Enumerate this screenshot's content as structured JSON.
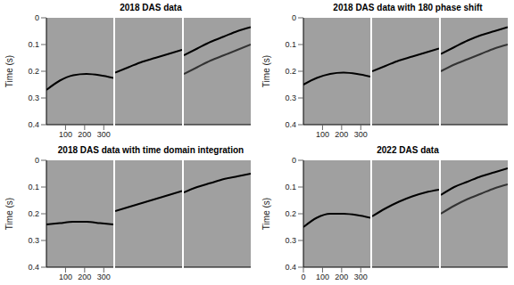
{
  "chart_data": [
    {
      "type": "line",
      "title": "2018 DAS data",
      "ylabel": "Time (s)",
      "x": [
        0,
        70,
        140,
        210,
        280,
        350
      ],
      "xlim": [
        0,
        350
      ],
      "xticks": [
        100,
        200,
        300
      ],
      "ylim": [
        0,
        0.4
      ],
      "yticks": [
        0,
        0.1,
        0.2,
        0.3,
        0.4
      ],
      "panels": [
        {
          "tick_labels": true,
          "series": [
            {
              "color": "#000000",
              "values": [
                0.27,
                0.235,
                0.215,
                0.21,
                0.215,
                0.225
              ]
            }
          ]
        },
        {
          "tick_labels": false,
          "series": [
            {
              "color": "#000000",
              "values": [
                0.205,
                0.185,
                0.165,
                0.15,
                0.135,
                0.12
              ]
            }
          ]
        },
        {
          "tick_labels": false,
          "series": [
            {
              "color": "#000000",
              "values": [
                0.14,
                0.115,
                0.09,
                0.07,
                0.05,
                0.035
              ]
            },
            {
              "color": "#333333",
              "values": [
                0.21,
                0.185,
                0.16,
                0.14,
                0.12,
                0.1
              ]
            }
          ]
        }
      ]
    },
    {
      "type": "line",
      "title": "2018 DAS data with 180 phase shift",
      "ylabel": "Time (s)",
      "x": [
        0,
        70,
        140,
        210,
        280,
        350
      ],
      "xlim": [
        0,
        350
      ],
      "xticks": [
        100,
        200,
        300
      ],
      "ylim": [
        0,
        0.4
      ],
      "yticks": [
        0,
        0.1,
        0.2,
        0.3,
        0.4
      ],
      "panels": [
        {
          "tick_labels": true,
          "series": [
            {
              "color": "#000000",
              "values": [
                0.25,
                0.225,
                0.21,
                0.205,
                0.21,
                0.22
              ]
            }
          ]
        },
        {
          "tick_labels": false,
          "series": [
            {
              "color": "#000000",
              "values": [
                0.2,
                0.18,
                0.16,
                0.145,
                0.13,
                0.115
              ]
            }
          ]
        },
        {
          "tick_labels": false,
          "series": [
            {
              "color": "#000000",
              "values": [
                0.135,
                0.11,
                0.085,
                0.065,
                0.05,
                0.035
              ]
            },
            {
              "color": "#333333",
              "values": [
                0.2,
                0.175,
                0.155,
                0.135,
                0.115,
                0.1
              ]
            }
          ]
        }
      ]
    },
    {
      "type": "line",
      "title": "2018 DAS data with time domain integration",
      "ylabel": "Time (s)",
      "x": [
        0,
        70,
        140,
        210,
        280,
        350
      ],
      "xlim": [
        0,
        350
      ],
      "xticks": [
        100,
        200,
        300
      ],
      "ylim": [
        0,
        0.4
      ],
      "yticks": [
        0,
        0.1,
        0.2,
        0.3,
        0.4
      ],
      "panels": [
        {
          "tick_labels": true,
          "series": [
            {
              "color": "#000000",
              "values": [
                0.24,
                0.235,
                0.23,
                0.23,
                0.235,
                0.24
              ]
            }
          ]
        },
        {
          "tick_labels": false,
          "series": [
            {
              "color": "#000000",
              "values": [
                0.19,
                0.175,
                0.16,
                0.145,
                0.13,
                0.115
              ]
            }
          ]
        },
        {
          "tick_labels": false,
          "series": [
            {
              "color": "#000000",
              "values": [
                0.12,
                0.1,
                0.085,
                0.07,
                0.06,
                0.05
              ]
            }
          ]
        }
      ]
    },
    {
      "type": "line",
      "title": "2022 DAS data",
      "ylabel": "Time (s)",
      "x": [
        0,
        70,
        140,
        210,
        280,
        350
      ],
      "xlim": [
        0,
        350
      ],
      "xticks": [
        0,
        100,
        200,
        300
      ],
      "ylim": [
        0,
        0.4
      ],
      "yticks": [
        0,
        0.1,
        0.2,
        0.3,
        0.4
      ],
      "panels": [
        {
          "tick_labels": true,
          "series": [
            {
              "color": "#000000",
              "values": [
                0.25,
                0.215,
                0.2,
                0.2,
                0.205,
                0.215
              ]
            }
          ]
        },
        {
          "tick_labels": false,
          "series": [
            {
              "color": "#000000",
              "values": [
                0.21,
                0.18,
                0.155,
                0.135,
                0.12,
                0.11
              ]
            }
          ]
        },
        {
          "tick_labels": false,
          "series": [
            {
              "color": "#000000",
              "values": [
                0.13,
                0.1,
                0.08,
                0.06,
                0.045,
                0.03
              ]
            },
            {
              "color": "#333333",
              "values": [
                0.2,
                0.17,
                0.145,
                0.125,
                0.105,
                0.09
              ]
            }
          ]
        }
      ]
    }
  ]
}
